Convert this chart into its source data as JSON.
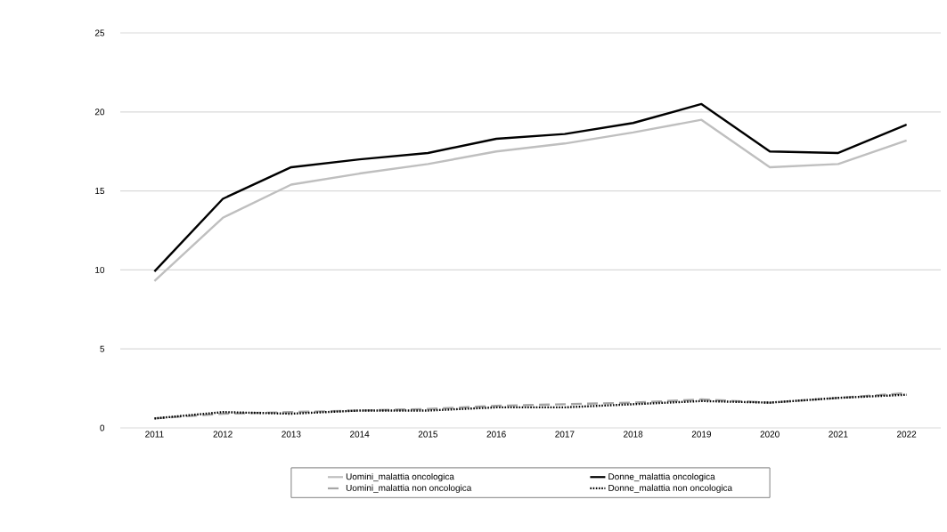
{
  "chart_data": {
    "type": "line",
    "categories": [
      "2011",
      "2012",
      "2013",
      "2014",
      "2015",
      "2016",
      "2017",
      "2018",
      "2019",
      "2020",
      "2021",
      "2022"
    ],
    "series": [
      {
        "name": "Uomini_malattia oncologica",
        "color": "#bfbfbf",
        "line_style": "solid",
        "values": [
          9.3,
          13.3,
          15.4,
          16.1,
          16.7,
          17.5,
          18.0,
          18.7,
          19.5,
          16.5,
          16.7,
          18.2
        ]
      },
      {
        "name": "Donne_malattia oncologica",
        "color": "#000000",
        "line_style": "solid",
        "values": [
          9.9,
          14.5,
          16.5,
          17.0,
          17.4,
          18.3,
          18.6,
          19.3,
          20.5,
          17.5,
          17.4,
          19.2
        ]
      },
      {
        "name": "Uomini_malattia non oncologica",
        "color": "#a6a6a6",
        "line_style": "dashed",
        "values": [
          0.6,
          0.9,
          1.0,
          1.1,
          1.2,
          1.4,
          1.5,
          1.6,
          1.8,
          1.6,
          1.9,
          2.2
        ]
      },
      {
        "name": "Donne_malattia non oncologica",
        "color": "#000000",
        "line_style": "dotted",
        "values": [
          0.6,
          1.0,
          0.9,
          1.1,
          1.1,
          1.3,
          1.3,
          1.5,
          1.7,
          1.6,
          1.9,
          2.1
        ]
      }
    ],
    "ylim": [
      0,
      25
    ],
    "yticks": [
      0,
      5,
      10,
      15,
      20,
      25
    ],
    "grid": "y",
    "legend": "bottom"
  }
}
